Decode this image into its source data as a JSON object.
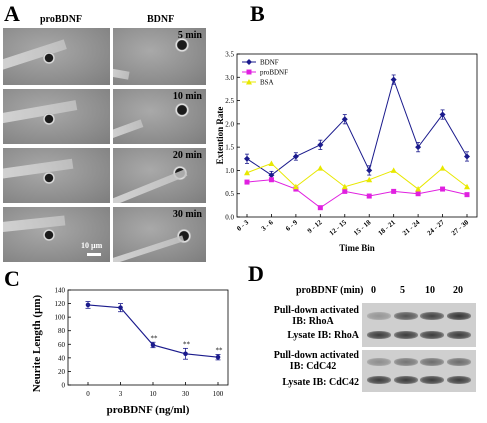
{
  "panel_a": {
    "letter": "A",
    "header_left": "proBDNF",
    "header_right": "BDNF",
    "time_labels": [
      "5 min",
      "10 min",
      "20 min",
      "30 min"
    ],
    "scale_bar": "10 µm"
  },
  "panel_b": {
    "letter": "B"
  },
  "panel_c": {
    "letter": "C"
  },
  "panel_d": {
    "letter": "D",
    "header": "proBDNF (min)",
    "lanes": [
      "0",
      "5",
      "10",
      "20"
    ],
    "rows": [
      {
        "label_line1": "Pull-down activated",
        "label_line2": "IB: RhoA"
      },
      {
        "label_line1": "Lysate IB: RhoA",
        "label_line2": ""
      },
      {
        "label_line1": "Pull-down activated",
        "label_line2": "IB: CdC42"
      },
      {
        "label_line1": "Lysate IB: CdC42",
        "label_line2": ""
      }
    ],
    "band_intensity": [
      [
        0.35,
        0.75,
        0.85,
        0.95
      ],
      [
        0.9,
        0.9,
        0.9,
        0.9
      ],
      [
        0.4,
        0.55,
        0.6,
        0.6
      ],
      [
        0.9,
        0.9,
        0.9,
        0.9
      ]
    ]
  },
  "chart_data": [
    {
      "type": "line",
      "panel": "B",
      "categories": [
        "0 - 3",
        "3 - 6",
        "6 - 9",
        "9 - 12",
        "12 - 15",
        "15 - 18",
        "18 - 21",
        "21 - 24",
        "24 - 27",
        "27 - 30"
      ],
      "xlabel": "Time Bin",
      "ylabel": "Extention Rate",
      "ylim": [
        0,
        3.5
      ],
      "yticks": [
        "0.0",
        "0.5",
        "1.0",
        "1.5",
        "2.0",
        "2.5",
        "3.0",
        "3.5"
      ],
      "legend_position": "top-left",
      "series": [
        {
          "name": "BDNF",
          "color": "#1a1a8c",
          "marker": "diamond",
          "values": [
            1.25,
            0.9,
            1.3,
            1.55,
            2.1,
            1.0,
            2.95,
            1.5,
            2.2,
            1.3
          ],
          "errors": [
            0.1,
            0.08,
            0.08,
            0.1,
            0.1,
            0.1,
            0.1,
            0.1,
            0.1,
            0.1
          ]
        },
        {
          "name": "proBDNF",
          "color": "#e020e0",
          "marker": "square",
          "values": [
            0.75,
            0.8,
            0.6,
            0.2,
            0.55,
            0.45,
            0.55,
            0.5,
            0.6,
            0.48
          ]
        },
        {
          "name": "BSA",
          "color": "#e8e800",
          "marker": "triangle",
          "values": [
            0.95,
            1.15,
            0.65,
            1.05,
            0.65,
            0.8,
            1.0,
            0.6,
            1.05,
            0.65
          ]
        }
      ]
    },
    {
      "type": "line",
      "panel": "C",
      "categories": [
        "0",
        "3",
        "10",
        "30",
        "100"
      ],
      "values": [
        118,
        114,
        59,
        46,
        41
      ],
      "errors": [
        5,
        6,
        4,
        8,
        4
      ],
      "significance": [
        "",
        "",
        "**",
        "**",
        "**"
      ],
      "xlabel": "proBDNF (ng/ml)",
      "ylabel": "Neurite Length (µm)",
      "ylim": [
        0,
        140
      ],
      "yticks": [
        "0",
        "20",
        "40",
        "60",
        "80",
        "100",
        "120",
        "140"
      ],
      "color": "#1a1a8c"
    }
  ]
}
